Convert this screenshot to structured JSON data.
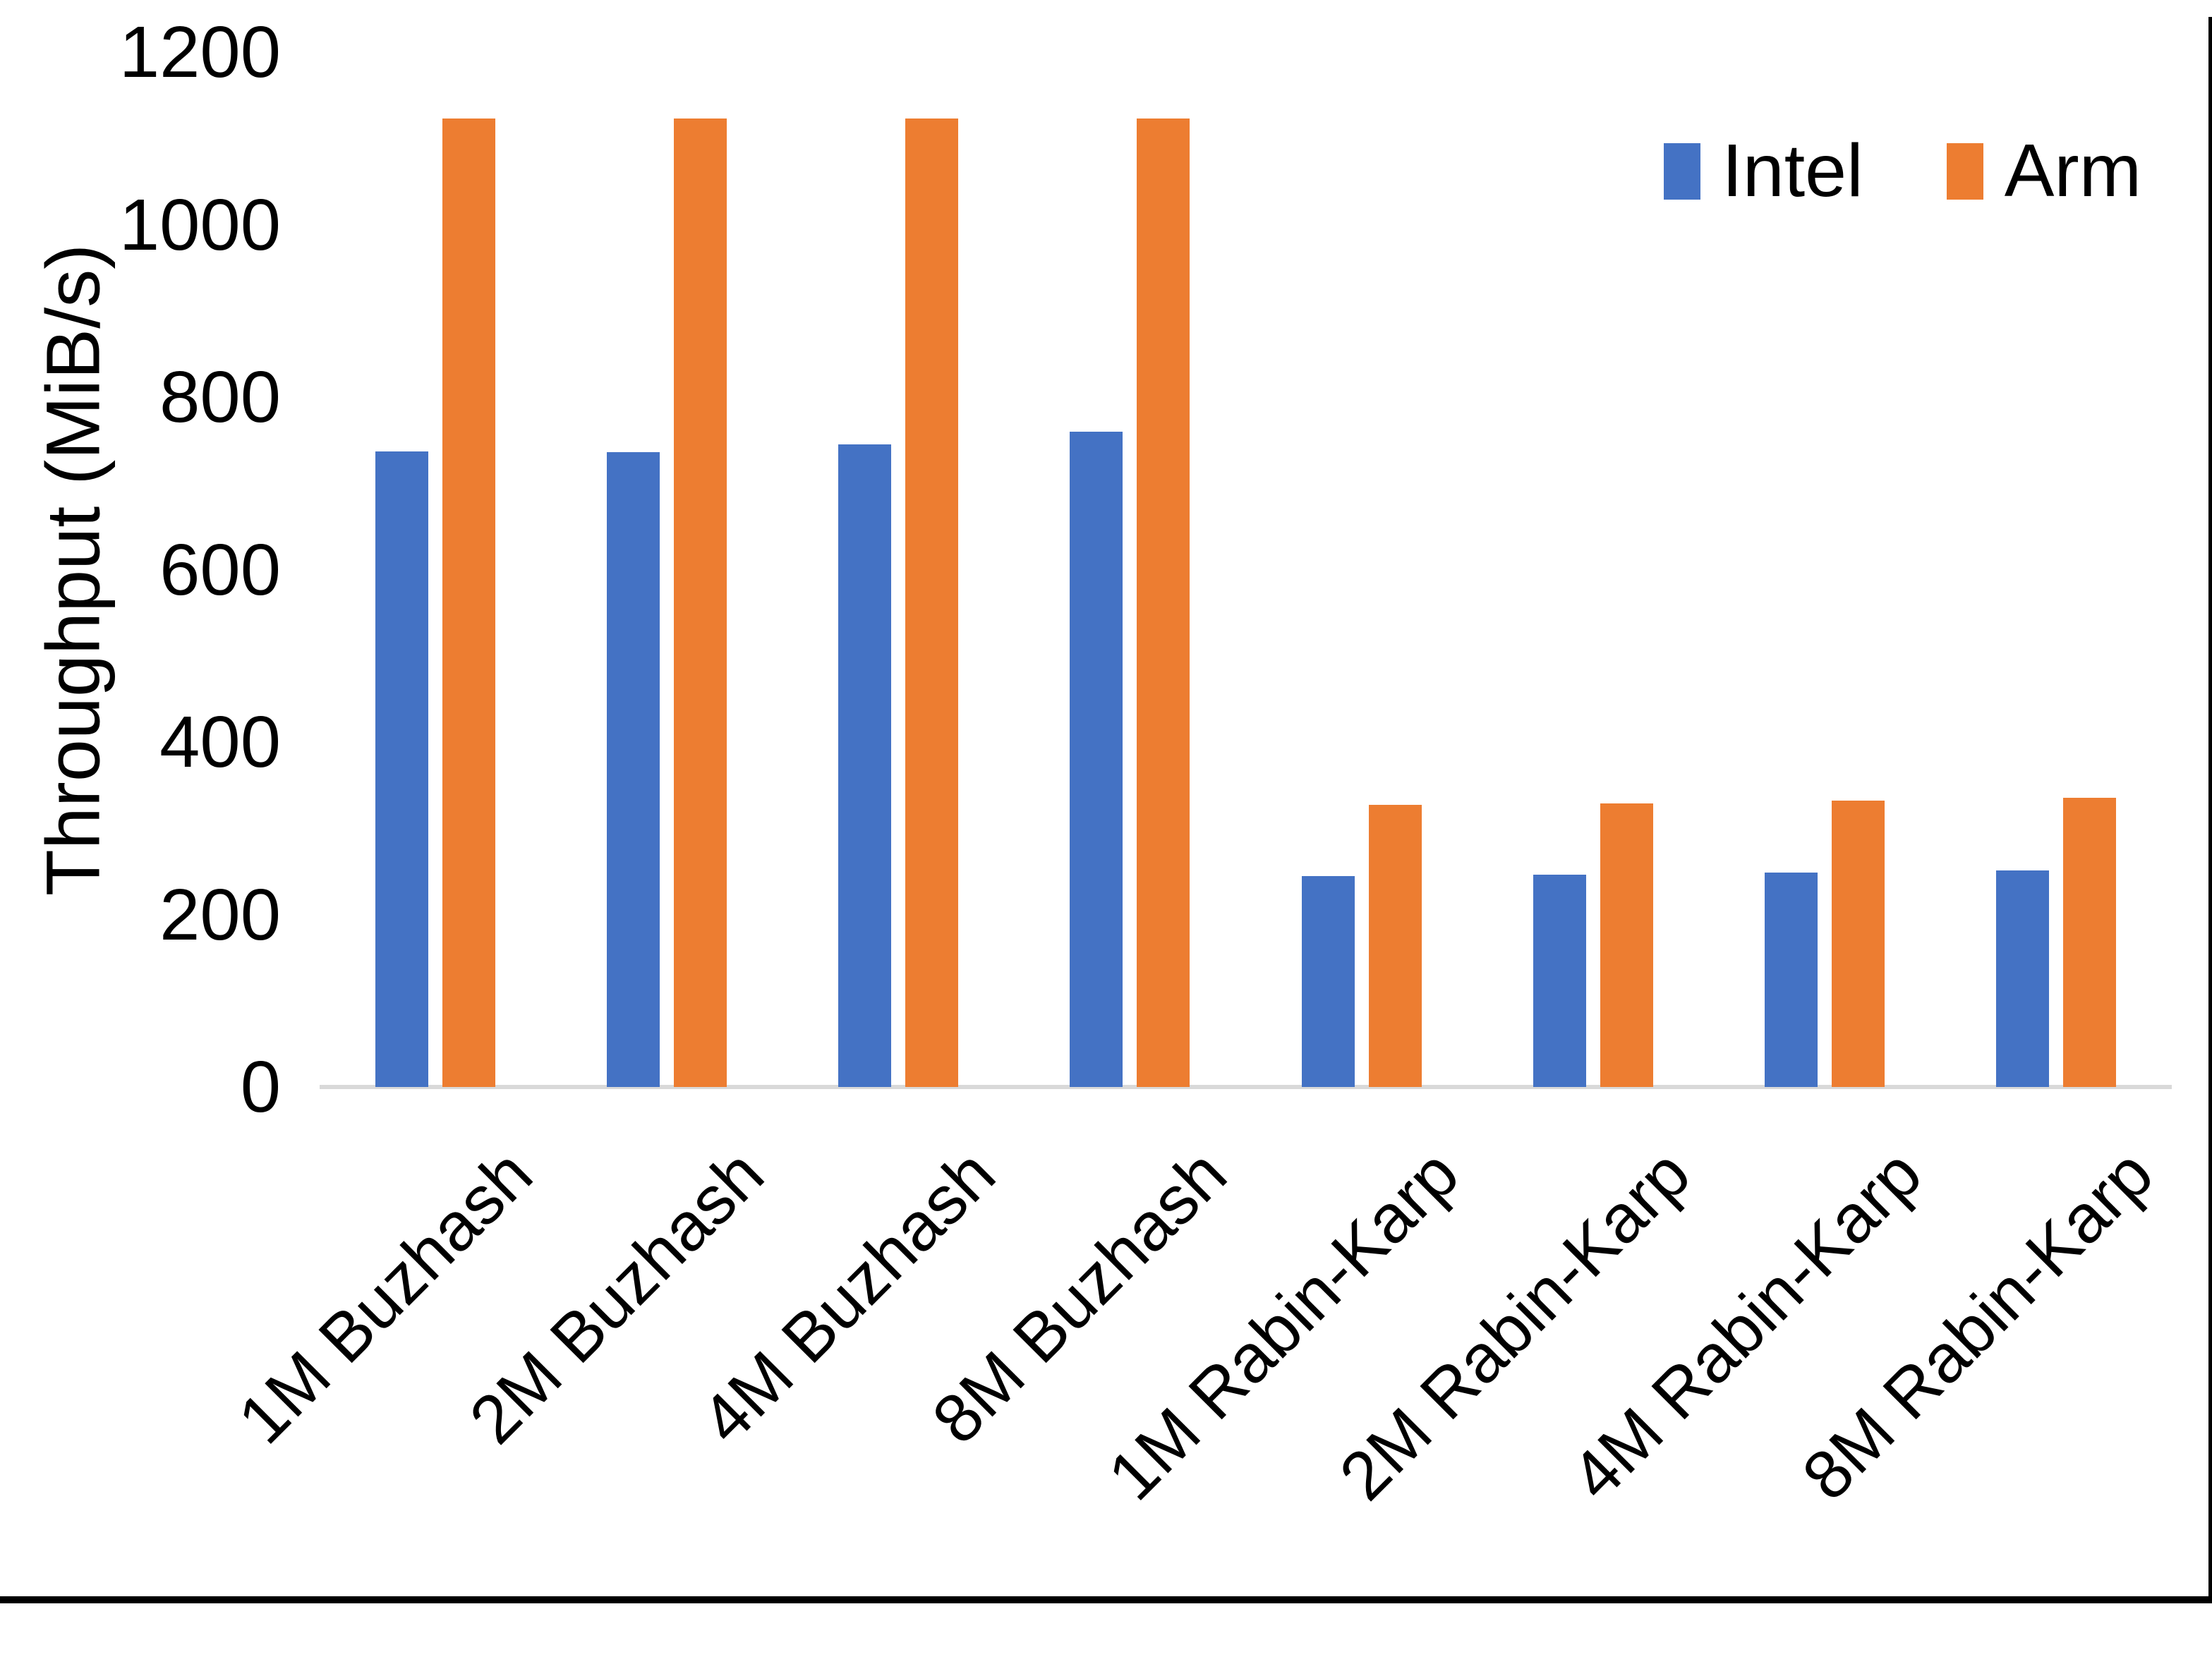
{
  "chart_data": {
    "type": "bar",
    "title": "",
    "xlabel": "",
    "ylabel": "Throughput (MiB/s)",
    "categories": [
      "1M Buzhash",
      "2M Buzhash",
      "4M Buzhash",
      "8M Buzhash",
      "1M Rabin-Karp",
      "2M Rabin-Karp",
      "4M Rabin-Karp",
      "8M Rabin-Karp"
    ],
    "series": [
      {
        "name": "Intel",
        "color": "#4472C4",
        "values": [
          737,
          736,
          745,
          760,
          245,
          246,
          249,
          251
        ]
      },
      {
        "name": "Arm",
        "color": "#ED7D31",
        "values": [
          1123,
          1123,
          1123,
          1123,
          327,
          329,
          332,
          335
        ]
      }
    ],
    "ylim": [
      0,
      1200
    ],
    "yticks": [
      0,
      200,
      400,
      600,
      800,
      1000,
      1200
    ],
    "grid": false,
    "legend_position": "top-right",
    "axis_line_color": "#D9D9D9",
    "text_color": "#000000"
  },
  "frame": {
    "bottom_border_color": "#000000",
    "right_border_color": "#000000"
  }
}
